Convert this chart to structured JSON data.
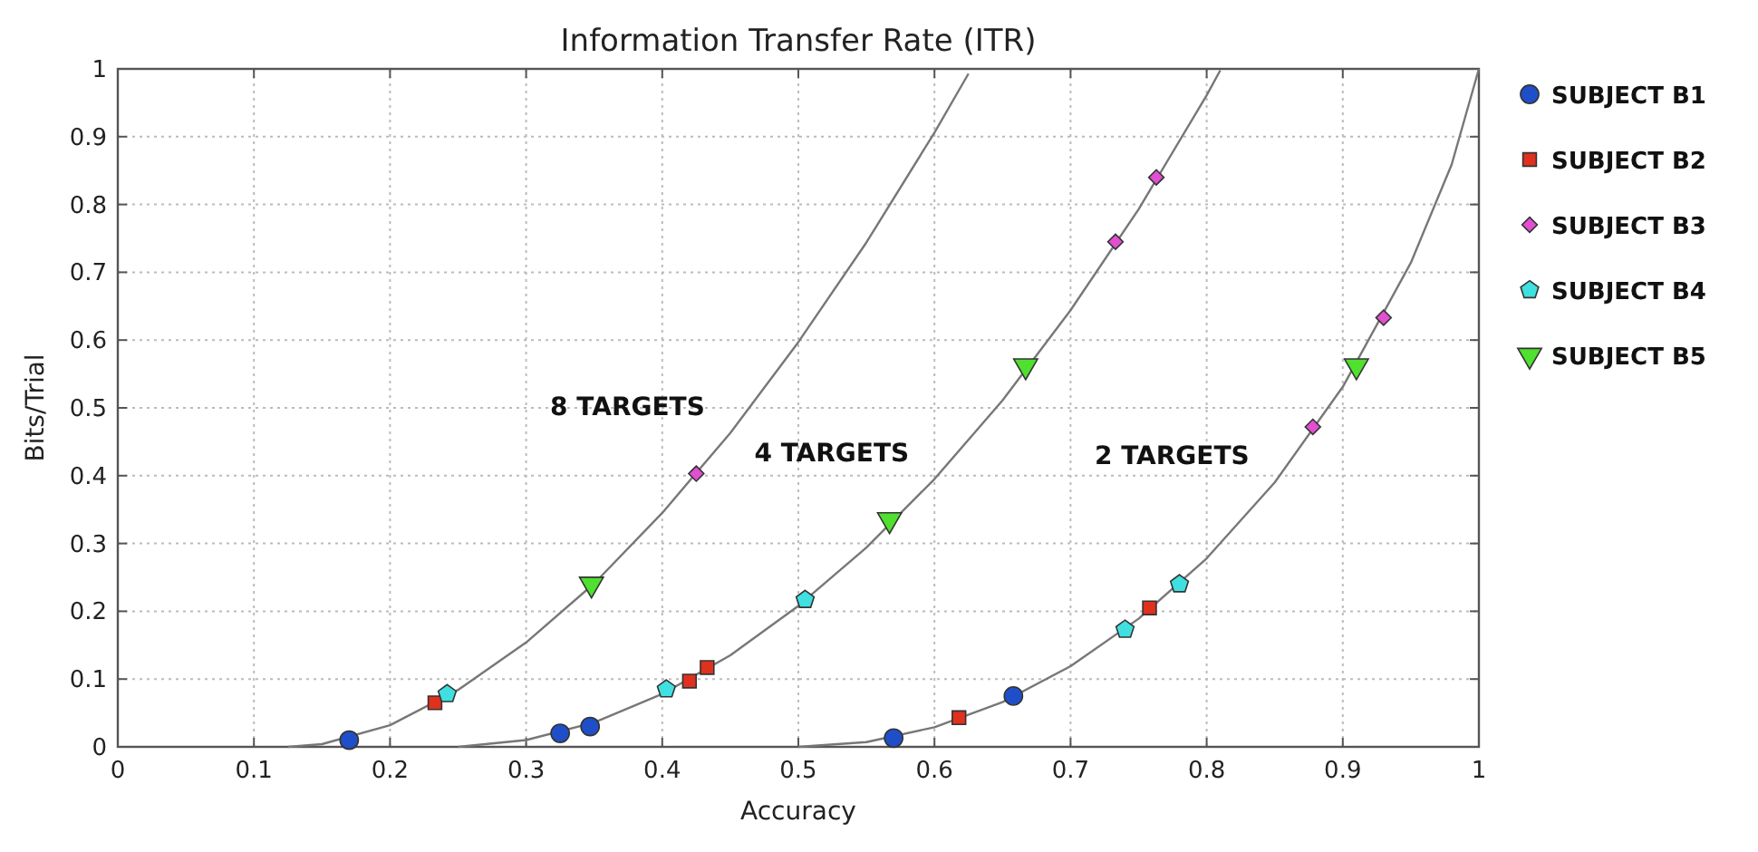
{
  "chart_data": {
    "type": "scatter",
    "title": "Information Transfer Rate (ITR)",
    "xlabel": "Accuracy",
    "ylabel": "Bits/Trial",
    "xlim": [
      0,
      1
    ],
    "ylim": [
      0,
      1
    ],
    "xticks": [
      0,
      0.1,
      0.2,
      0.3,
      0.4,
      0.5,
      0.6,
      0.7,
      0.8,
      0.9,
      1
    ],
    "yticks": [
      0,
      0.1,
      0.2,
      0.3,
      0.4,
      0.5,
      0.6,
      0.7,
      0.8,
      0.9,
      1
    ],
    "grid": true,
    "legend": "right",
    "series": [
      {
        "type": "line",
        "color": "#777777",
        "marker": "none",
        "line_style": "solid",
        "x": [
          0.125,
          0.15,
          0.2,
          0.25,
          0.3,
          0.35,
          0.4,
          0.45,
          0.5,
          0.55,
          0.6,
          0.625
        ],
        "values": [
          0,
          0.004,
          0.032,
          0.084,
          0.154,
          0.241,
          0.345,
          0.463,
          0.597,
          0.744,
          0.906,
          0.993
        ]
      },
      {
        "type": "line",
        "color": "#777777",
        "marker": "none",
        "line_style": "solid",
        "x": [
          0.25,
          0.3,
          0.35,
          0.4,
          0.45,
          0.5,
          0.55,
          0.6,
          0.65,
          0.7,
          0.75,
          0.8,
          0.81
        ],
        "values": [
          0,
          0.01,
          0.036,
          0.078,
          0.135,
          0.208,
          0.294,
          0.395,
          0.511,
          0.644,
          0.793,
          0.961,
          0.998
        ]
      },
      {
        "type": "line",
        "color": "#777777",
        "marker": "none",
        "line_style": "solid",
        "x": [
          0.5,
          0.55,
          0.6,
          0.65,
          0.7,
          0.75,
          0.8,
          0.85,
          0.9,
          0.95,
          0.98,
          1
        ],
        "values": [
          0,
          0.007,
          0.029,
          0.066,
          0.119,
          0.189,
          0.278,
          0.39,
          0.531,
          0.714,
          0.859,
          1
        ]
      },
      {
        "name": "SUBJECT B1",
        "color": "#1f4fc8",
        "marker": "circle",
        "x": [
          0.17,
          0.325,
          0.347,
          0.57,
          0.658
        ],
        "values": [
          0.01,
          0.02,
          0.03,
          0.013,
          0.075
        ]
      },
      {
        "name": "SUBJECT B2",
        "color": "#e0301e",
        "marker": "square",
        "x": [
          0.233,
          0.42,
          0.433,
          0.618,
          0.758
        ],
        "values": [
          0.065,
          0.097,
          0.117,
          0.043,
          0.205
        ]
      },
      {
        "name": "SUBJECT B3",
        "color": "#e050d0",
        "marker": "diamond",
        "x": [
          0.425,
          0.733,
          0.763,
          0.878,
          0.93
        ],
        "values": [
          0.403,
          0.745,
          0.84,
          0.472,
          0.633
        ]
      },
      {
        "name": "SUBJECT B4",
        "color": "#40e0e0",
        "x": [
          0.242,
          0.403,
          0.505,
          0.74,
          0.78
        ],
        "values": [
          0.078,
          0.085,
          0.217,
          0.173,
          0.24
        ]
      },
      {
        "name": "SUBJECT B5",
        "color": "#50e030",
        "marker": "triangle-down",
        "x": [
          0.348,
          0.567,
          0.667,
          0.91
        ],
        "values": [
          0.24,
          0.335,
          0.562,
          0.562
        ]
      }
    ],
    "annotations": [
      "8 TARGETS",
      "4 TARGETS",
      "2 TARGETS"
    ]
  }
}
